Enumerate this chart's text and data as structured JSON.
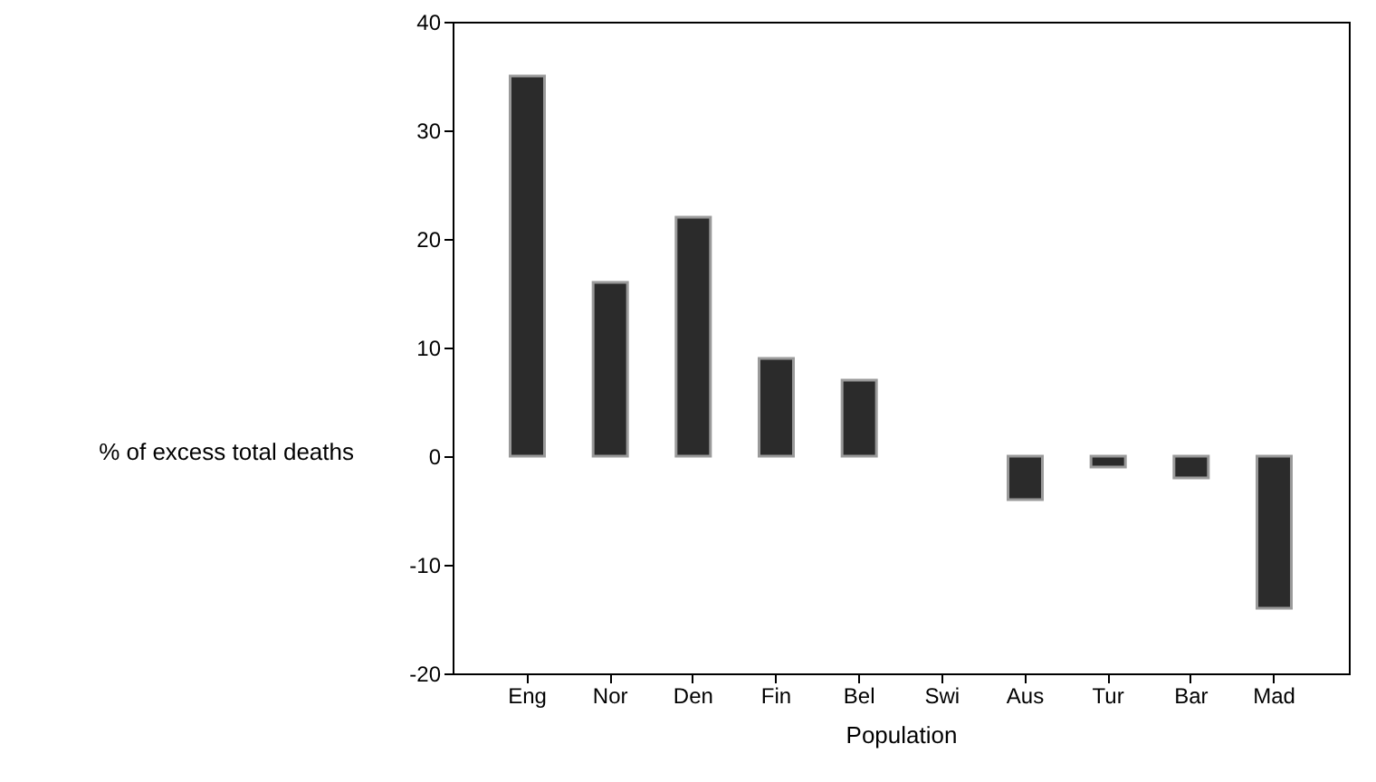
{
  "chart_data": {
    "type": "bar",
    "xlabel": "Population",
    "ylabel": "% of excess total deaths",
    "categories": [
      "Eng",
      "Nor",
      "Den",
      "Fin",
      "Bel",
      "Swi",
      "Aus",
      "Tur",
      "Bar",
      "Mad"
    ],
    "values": [
      35,
      16,
      22,
      9,
      7,
      null,
      -4,
      -1,
      -2,
      -14
    ],
    "color": "#2b2b2b",
    "ylim": [
      -20,
      40
    ],
    "yticks": [
      -20,
      -10,
      0,
      10,
      20,
      30,
      40
    ],
    "grid": false
  }
}
